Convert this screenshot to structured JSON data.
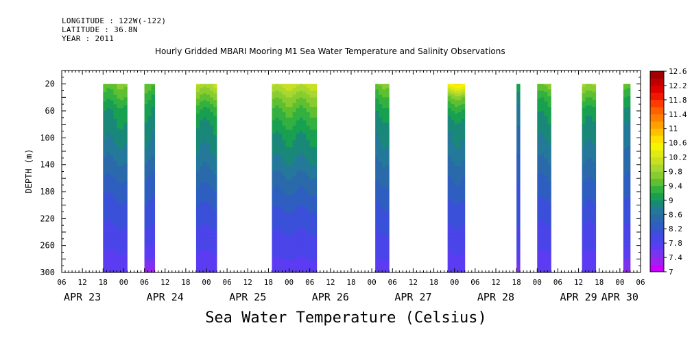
{
  "header": {
    "longitude": "LONGITUDE : 122W(-122)",
    "latitude": "LATITUDE : 36.8N",
    "year": "YEAR : 2011"
  },
  "chart_data": {
    "type": "heatmap",
    "title": "Hourly Gridded MBARI Mooring M1 Sea Water Temperature and Salinity Observations",
    "caption": "Sea Water Temperature (Celsius)",
    "ylabel": "DEPTH (m)",
    "xlabel": "",
    "ylim": [
      0,
      300
    ],
    "y_reversed": true,
    "y_ticks": [
      20,
      60,
      100,
      140,
      180,
      220,
      260,
      300
    ],
    "x_hour_ticks": [
      "06",
      "12",
      "18",
      "00",
      "06",
      "12",
      "18",
      "00",
      "06",
      "12",
      "18",
      "00",
      "06",
      "12",
      "18",
      "00",
      "06",
      "12",
      "18",
      "00",
      "06",
      "12",
      "18",
      "00",
      "06",
      "12",
      "18",
      "00",
      "06"
    ],
    "x_day_labels": [
      "APR 23",
      "APR 24",
      "APR 25",
      "APR 26",
      "APR 27",
      "APR 28",
      "APR 29",
      "APR 30"
    ],
    "x_start_hour": 6,
    "x_end_hour": 174,
    "depth_top": 20,
    "colorbar": {
      "levels": [
        7,
        7.2,
        7.4,
        7.6,
        7.8,
        8,
        8.2,
        8.4,
        8.6,
        8.8,
        9,
        9.2,
        9.4,
        9.6,
        9.8,
        10,
        10.2,
        10.4,
        10.6,
        10.8,
        11,
        11.2,
        11.4,
        11.6,
        11.8,
        12,
        12.2,
        12.4,
        12.6
      ],
      "tick_labels": [
        "7",
        "7.4",
        "7.8",
        "8.2",
        "8.6",
        "9",
        "9.4",
        "9.8",
        "10.2",
        "10.6",
        "11",
        "11.4",
        "11.8",
        "12.2",
        "12.6"
      ],
      "colors": [
        "#cc00ff",
        "#9b22f0",
        "#7a33ee",
        "#5c3cf2",
        "#4a45e8",
        "#3a50d8",
        "#2e5ec0",
        "#2a6aaa",
        "#24789a",
        "#1a8878",
        "#18a050",
        "#33b040",
        "#5ec030",
        "#88cc30",
        "#a8d830",
        "#c8e020",
        "#e0ec10",
        "#f6f400",
        "#ffe000",
        "#ffc000",
        "#ffa000",
        "#ff8000",
        "#ff6000",
        "#ff3c00",
        "#f01800",
        "#e00000",
        "#c00000",
        "#a00000"
      ]
    },
    "data_segments": [
      {
        "start_hour": 18,
        "end_hour": 25,
        "profile": [
          [
            20,
            9.6
          ],
          [
            40,
            9.35
          ],
          [
            60,
            9.05
          ],
          [
            80,
            8.95
          ],
          [
            100,
            8.85
          ],
          [
            120,
            8.7
          ],
          [
            140,
            8.55
          ],
          [
            160,
            8.4
          ],
          [
            180,
            8.25
          ],
          [
            200,
            8.15
          ],
          [
            220,
            8.05
          ],
          [
            240,
            7.95
          ],
          [
            260,
            7.85
          ],
          [
            280,
            7.75
          ],
          [
            300,
            7.7
          ]
        ]
      },
      {
        "start_hour": 30,
        "end_hour": 33,
        "profile": [
          [
            20,
            9.5
          ],
          [
            40,
            9.2
          ],
          [
            60,
            9.0
          ],
          [
            80,
            8.9
          ],
          [
            100,
            8.8
          ],
          [
            120,
            8.7
          ],
          [
            140,
            8.5
          ],
          [
            160,
            8.35
          ],
          [
            180,
            8.25
          ],
          [
            200,
            8.15
          ],
          [
            220,
            8.05
          ],
          [
            240,
            7.95
          ],
          [
            260,
            7.8
          ],
          [
            280,
            7.6
          ],
          [
            300,
            7.3
          ]
        ]
      },
      {
        "start_hour": 45,
        "end_hour": 51,
        "profile": [
          [
            20,
            10.0
          ],
          [
            40,
            9.6
          ],
          [
            60,
            9.2
          ],
          [
            80,
            9.0
          ],
          [
            100,
            8.9
          ],
          [
            120,
            8.8
          ],
          [
            140,
            8.65
          ],
          [
            160,
            8.5
          ],
          [
            180,
            8.35
          ],
          [
            200,
            8.2
          ],
          [
            220,
            8.1
          ],
          [
            240,
            7.95
          ],
          [
            260,
            7.85
          ],
          [
            280,
            7.75
          ],
          [
            300,
            7.7
          ]
        ]
      },
      {
        "start_hour": 67,
        "end_hour": 80,
        "profile": [
          [
            20,
            10.1
          ],
          [
            40,
            9.7
          ],
          [
            60,
            9.4
          ],
          [
            80,
            9.2
          ],
          [
            100,
            9.0
          ],
          [
            120,
            8.9
          ],
          [
            140,
            8.75
          ],
          [
            160,
            8.55
          ],
          [
            180,
            8.4
          ],
          [
            200,
            8.25
          ],
          [
            220,
            8.1
          ],
          [
            240,
            8.0
          ],
          [
            260,
            7.9
          ],
          [
            280,
            7.8
          ],
          [
            300,
            7.7
          ]
        ]
      },
      {
        "start_hour": 97,
        "end_hour": 101,
        "profile": [
          [
            20,
            9.6
          ],
          [
            40,
            9.3
          ],
          [
            60,
            9.05
          ],
          [
            80,
            8.9
          ],
          [
            100,
            8.8
          ],
          [
            120,
            8.7
          ],
          [
            140,
            8.55
          ],
          [
            160,
            8.45
          ],
          [
            180,
            8.3
          ],
          [
            200,
            8.2
          ],
          [
            220,
            8.1
          ],
          [
            240,
            8.0
          ],
          [
            260,
            7.9
          ],
          [
            280,
            7.8
          ],
          [
            300,
            7.7
          ]
        ]
      },
      {
        "start_hour": 118,
        "end_hour": 123,
        "profile": [
          [
            20,
            10.6
          ],
          [
            40,
            9.6
          ],
          [
            60,
            9.15
          ],
          [
            80,
            8.9
          ],
          [
            100,
            8.8
          ],
          [
            120,
            8.7
          ],
          [
            140,
            8.55
          ],
          [
            160,
            8.4
          ],
          [
            180,
            8.3
          ],
          [
            200,
            8.15
          ],
          [
            220,
            8.05
          ],
          [
            240,
            7.95
          ],
          [
            260,
            7.85
          ],
          [
            280,
            7.75
          ],
          [
            300,
            7.65
          ]
        ]
      },
      {
        "start_hour": 138,
        "end_hour": 139,
        "profile": [
          [
            20,
            9.3
          ],
          [
            40,
            9.0
          ],
          [
            60,
            8.8
          ],
          [
            80,
            8.7
          ],
          [
            100,
            8.6
          ],
          [
            120,
            8.5
          ],
          [
            140,
            8.4
          ],
          [
            160,
            8.3
          ],
          [
            180,
            8.2
          ],
          [
            200,
            8.15
          ],
          [
            220,
            8.1
          ],
          [
            240,
            8.0
          ],
          [
            260,
            7.9
          ],
          [
            280,
            7.7
          ],
          [
            300,
            7.4
          ]
        ]
      },
      {
        "start_hour": 144,
        "end_hour": 148,
        "profile": [
          [
            20,
            9.7
          ],
          [
            40,
            9.3
          ],
          [
            60,
            9.1
          ],
          [
            80,
            8.95
          ],
          [
            100,
            8.85
          ],
          [
            120,
            8.7
          ],
          [
            140,
            8.55
          ],
          [
            160,
            8.4
          ],
          [
            180,
            8.3
          ],
          [
            200,
            8.15
          ],
          [
            220,
            8.05
          ],
          [
            240,
            7.95
          ],
          [
            260,
            7.85
          ],
          [
            280,
            7.75
          ],
          [
            300,
            7.65
          ]
        ]
      },
      {
        "start_hour": 157,
        "end_hour": 161,
        "profile": [
          [
            20,
            9.9
          ],
          [
            40,
            9.5
          ],
          [
            60,
            9.15
          ],
          [
            80,
            9.0
          ],
          [
            100,
            8.9
          ],
          [
            120,
            8.75
          ],
          [
            140,
            8.6
          ],
          [
            160,
            8.45
          ],
          [
            180,
            8.3
          ],
          [
            200,
            8.2
          ],
          [
            220,
            8.05
          ],
          [
            240,
            7.95
          ],
          [
            260,
            7.85
          ],
          [
            280,
            7.75
          ],
          [
            300,
            7.7
          ]
        ]
      },
      {
        "start_hour": 169,
        "end_hour": 171,
        "profile": [
          [
            20,
            9.4
          ],
          [
            40,
            9.1
          ],
          [
            60,
            8.85
          ],
          [
            80,
            8.7
          ],
          [
            100,
            8.6
          ],
          [
            120,
            8.5
          ],
          [
            140,
            8.4
          ],
          [
            160,
            8.3
          ],
          [
            180,
            8.2
          ],
          [
            200,
            8.1
          ],
          [
            220,
            8.0
          ],
          [
            240,
            7.9
          ],
          [
            260,
            7.8
          ],
          [
            280,
            7.6
          ],
          [
            300,
            7.35
          ]
        ]
      }
    ]
  }
}
